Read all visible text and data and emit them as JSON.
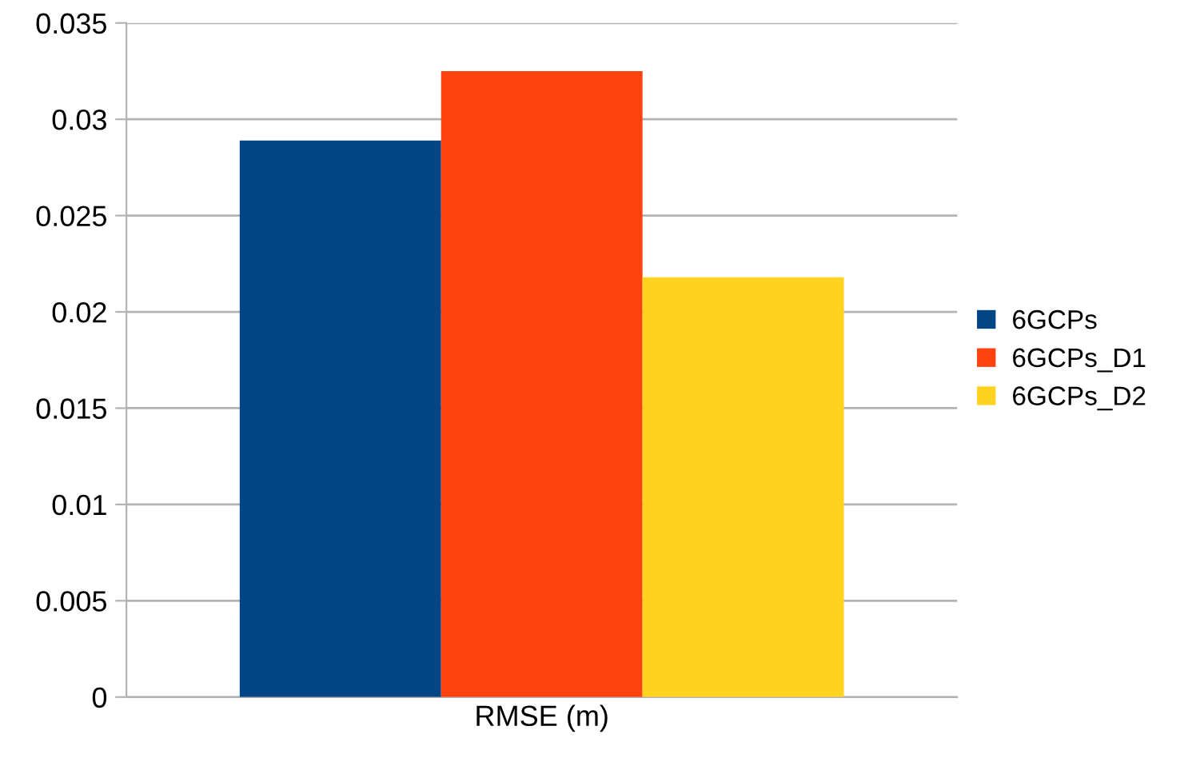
{
  "chart_data": {
    "type": "bar",
    "categories": [
      "RMSE (m)"
    ],
    "series": [
      {
        "name": "6GCPs",
        "color": "#004586",
        "values": [
          0.0289
        ]
      },
      {
        "name": "6GCPs_D1",
        "color": "#ff420e",
        "values": [
          0.0325
        ]
      },
      {
        "name": "6GCPs_D2",
        "color": "#ffd320",
        "values": [
          0.0218
        ]
      }
    ],
    "ylim": [
      0,
      0.035
    ],
    "yticks": [
      0,
      0.005,
      0.01,
      0.015,
      0.02,
      0.025,
      0.03,
      0.035
    ],
    "grid": "y",
    "legend": "right"
  }
}
